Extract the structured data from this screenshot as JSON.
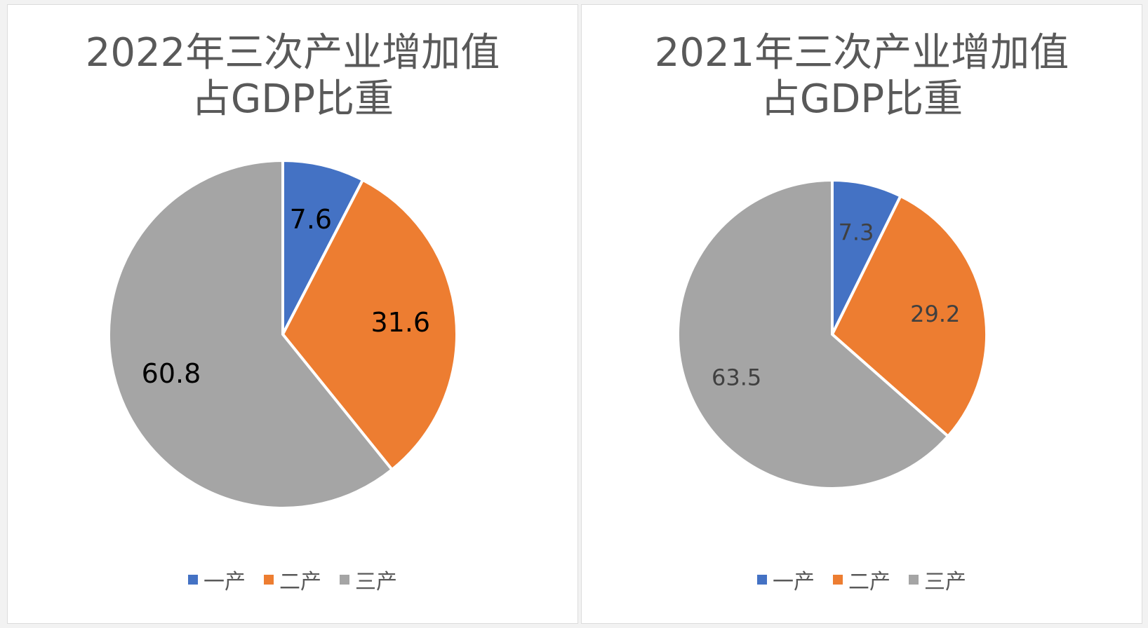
{
  "chart_data": [
    {
      "type": "pie",
      "title_lines": [
        "2022年三次产业增加值",
        "占GDP比重"
      ],
      "categories": [
        "一产",
        "二产",
        "三产"
      ],
      "values": [
        7.6,
        31.6,
        60.8
      ],
      "data_labels": [
        "7.6",
        "31.6",
        "60.8"
      ],
      "colors": [
        "#4472C4",
        "#ED7D31",
        "#A5A5A5"
      ],
      "legend_position": "bottom",
      "label_color": "#000000"
    },
    {
      "type": "pie",
      "title_lines": [
        "2021年三次产业增加值",
        "占GDP比重"
      ],
      "categories": [
        "一产",
        "二产",
        "三产"
      ],
      "values": [
        7.3,
        29.2,
        63.5
      ],
      "data_labels": [
        "7.3",
        "29.2",
        "63.5"
      ],
      "colors": [
        "#4472C4",
        "#ED7D31",
        "#A5A5A5"
      ],
      "legend_position": "bottom",
      "label_color": "#404040"
    }
  ]
}
